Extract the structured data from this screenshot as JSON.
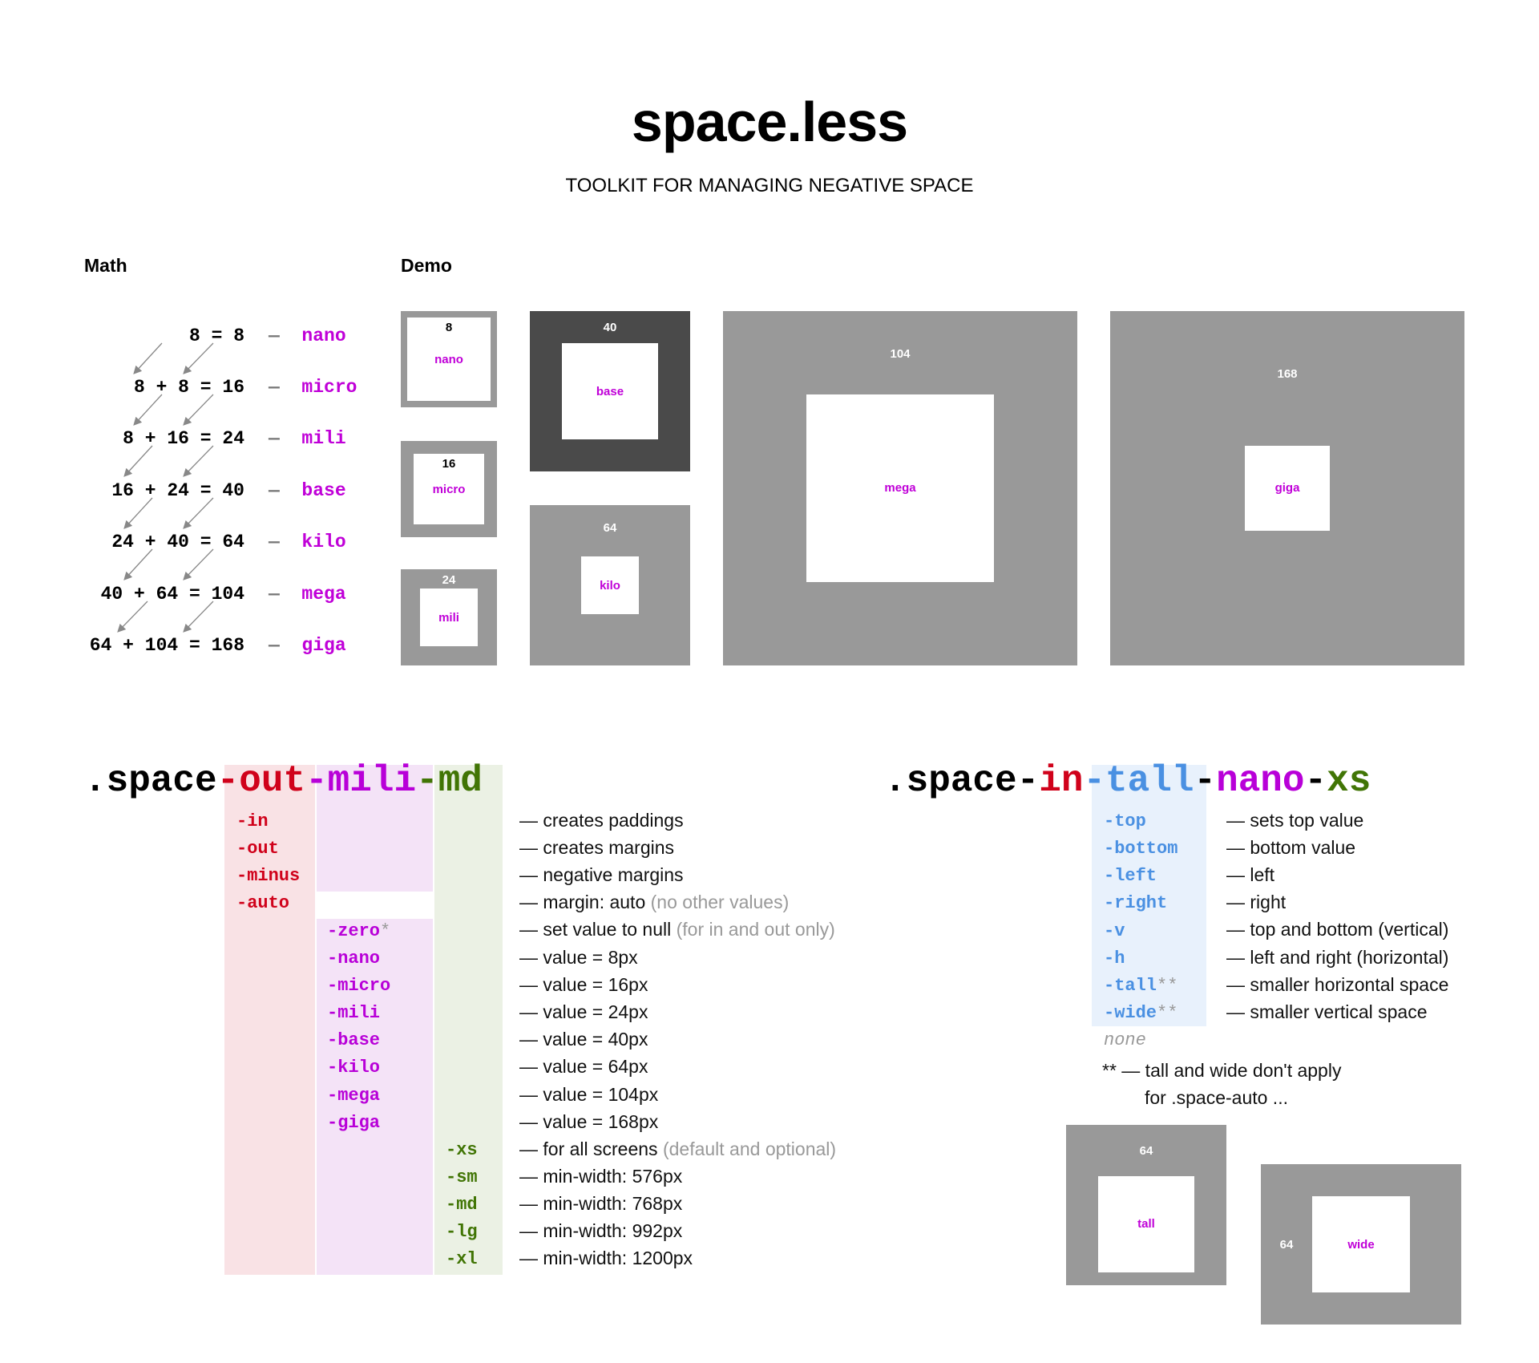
{
  "title": "space.less",
  "subtitle": "TOOLKIT FOR MANAGING NEGATIVE SPACE",
  "math_heading": "Math",
  "demo_heading": "Demo",
  "math": [
    {
      "eq": "8 = 8",
      "name": "nano"
    },
    {
      "eq": "8 + 8 = 16",
      "name": "micro"
    },
    {
      "eq": "8 + 16 = 24",
      "name": "mili"
    },
    {
      "eq": "16 + 24 = 40",
      "name": "base"
    },
    {
      "eq": "24 + 40 = 64",
      "name": "kilo"
    },
    {
      "eq": "40 + 64 = 104",
      "name": "mega"
    },
    {
      "eq": "64 + 104 = 168",
      "name": "giga"
    }
  ],
  "math_dash": "—",
  "demo": [
    {
      "num": "8",
      "label": "nano"
    },
    {
      "num": "16",
      "label": "micro"
    },
    {
      "num": "24",
      "label": "mili"
    },
    {
      "num": "40",
      "label": "base"
    },
    {
      "num": "64",
      "label": "kilo"
    },
    {
      "num": "104",
      "label": "mega"
    },
    {
      "num": "168",
      "label": "giga"
    }
  ],
  "left_class": {
    "prefix": ".space",
    "p1": "-out",
    "p2": "-mili",
    "p3": "-md",
    "col1": [
      "-in",
      "-out",
      "-minus",
      "-auto"
    ],
    "col2": [
      "-zero",
      "-nano",
      "-micro",
      "-mili",
      "-base",
      "-kilo",
      "-mega",
      "-giga"
    ],
    "zero_star": "*",
    "col3": [
      "-xs",
      "-sm",
      "-md",
      "-lg",
      "-xl"
    ],
    "descs": [
      {
        "text": "— creates paddings",
        "gray": ""
      },
      {
        "text": "— creates margins",
        "gray": ""
      },
      {
        "text": "— negative margins",
        "gray": ""
      },
      {
        "text": "— margin: auto ",
        "gray": "(no other values)"
      },
      {
        "text": "— set value to null ",
        "gray": "(for in and out only)"
      },
      {
        "text": "— value = 8px",
        "gray": ""
      },
      {
        "text": "— value = 16px",
        "gray": ""
      },
      {
        "text": "— value = 24px",
        "gray": ""
      },
      {
        "text": "— value = 40px",
        "gray": ""
      },
      {
        "text": "— value = 64px",
        "gray": ""
      },
      {
        "text": "— value = 104px",
        "gray": ""
      },
      {
        "text": "— value = 168px",
        "gray": ""
      },
      {
        "text": "— for all screens ",
        "gray": "(default and optional)"
      },
      {
        "text": "— min-width: 576px",
        "gray": ""
      },
      {
        "text": "— min-width: 768px",
        "gray": ""
      },
      {
        "text": "— min-width: 992px",
        "gray": ""
      },
      {
        "text": "— min-width: 1200px",
        "gray": ""
      }
    ]
  },
  "right_class": {
    "prefix": ".space-",
    "p1": "in",
    "p2": "-tall",
    "p3": "-",
    "p4": "nano",
    "p5": "-",
    "p6": "xs",
    "opts": [
      "-top",
      "-bottom",
      "-left",
      "-right",
      "-v",
      "-h",
      "-tall",
      "-wide"
    ],
    "star2": "**",
    "none": "none",
    "descs": [
      "— sets top value",
      "— bottom value",
      "— left",
      "— right",
      "— top and bottom (vertical)",
      "— left and right (horizontal)",
      "— smaller horizontal space",
      "— smaller vertical space"
    ],
    "note_line1": "** — tall and wide don't apply",
    "note_line2": "for .space-auto ...",
    "tall_num": "64",
    "tall_label": "tall",
    "wide_num": "64",
    "wide_label": "wide"
  },
  "colors": {
    "accent_purple": "#c000d8",
    "red": "#d0021b",
    "green": "#417505",
    "blue": "#4a90e2",
    "box_gray": "#999999",
    "box_dark": "#4a4a4a"
  }
}
